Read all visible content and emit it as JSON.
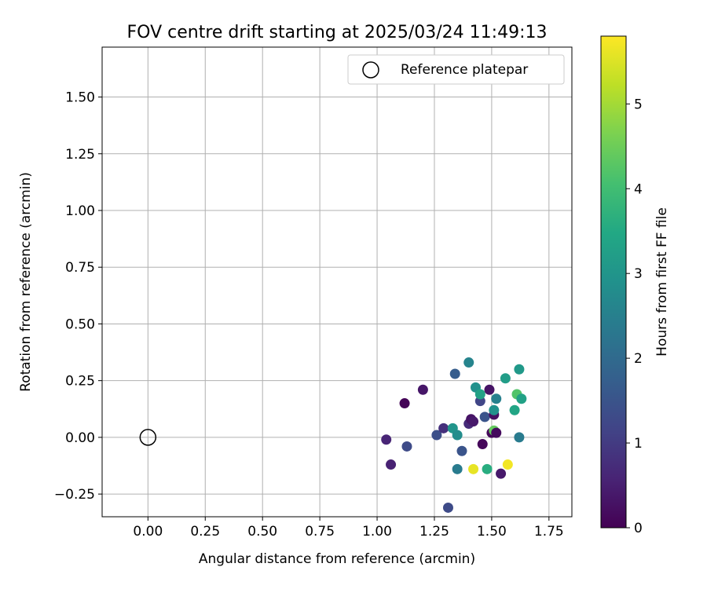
{
  "chart_data": {
    "type": "scatter",
    "title": "FOV centre drift starting at 2025/03/24 11:49:13",
    "xlabel": "Angular distance from reference (arcmin)",
    "ylabel": "Rotation from reference (arcmin)",
    "xlim": [
      -0.2,
      1.85
    ],
    "ylim": [
      -0.35,
      1.72
    ],
    "xticks": [
      0.0,
      0.25,
      0.5,
      0.75,
      1.0,
      1.25,
      1.5,
      1.75
    ],
    "xtick_labels": [
      "0.00",
      "0.25",
      "0.50",
      "0.75",
      "1.00",
      "1.25",
      "1.50",
      "1.75"
    ],
    "yticks": [
      -0.25,
      0.0,
      0.25,
      0.5,
      0.75,
      1.0,
      1.25,
      1.5
    ],
    "ytick_labels": [
      "−0.25",
      "0.00",
      "0.25",
      "0.50",
      "0.75",
      "1.00",
      "1.25",
      "1.50"
    ],
    "grid": true,
    "legend": {
      "placement": "top-right",
      "entries": [
        "Reference platepar"
      ]
    },
    "reference_point": {
      "x": 0.0,
      "y": 0.0,
      "label": "Reference platepar"
    },
    "colorbar": {
      "label": "Hours from first FF file",
      "colormap": "viridis",
      "min": 0,
      "max": 5.8,
      "ticks": [
        0,
        1,
        2,
        3,
        4,
        5
      ],
      "tick_labels": [
        "0",
        "1",
        "2",
        "3",
        "4",
        "5"
      ]
    },
    "points": [
      {
        "x": 1.12,
        "y": 0.15,
        "c": 0.05
      },
      {
        "x": 1.2,
        "y": 0.21,
        "c": 0.35
      },
      {
        "x": 1.04,
        "y": -0.01,
        "c": 0.6
      },
      {
        "x": 1.06,
        "y": -0.12,
        "c": 0.55
      },
      {
        "x": 1.13,
        "y": -0.04,
        "c": 1.3
      },
      {
        "x": 1.26,
        "y": 0.01,
        "c": 1.4
      },
      {
        "x": 1.29,
        "y": 0.04,
        "c": 0.8
      },
      {
        "x": 1.31,
        "y": -0.31,
        "c": 1.3
      },
      {
        "x": 1.33,
        "y": 0.04,
        "c": 3.0
      },
      {
        "x": 1.34,
        "y": 0.28,
        "c": 1.7
      },
      {
        "x": 1.35,
        "y": 0.01,
        "c": 2.8
      },
      {
        "x": 1.35,
        "y": -0.14,
        "c": 2.4
      },
      {
        "x": 1.37,
        "y": -0.06,
        "c": 1.5
      },
      {
        "x": 1.4,
        "y": 0.33,
        "c": 2.6
      },
      {
        "x": 1.4,
        "y": 0.06,
        "c": 0.7
      },
      {
        "x": 1.41,
        "y": 0.08,
        "c": 0.3
      },
      {
        "x": 1.42,
        "y": 0.07,
        "c": 0.4
      },
      {
        "x": 1.42,
        "y": -0.14,
        "c": 5.6
      },
      {
        "x": 1.43,
        "y": 0.22,
        "c": 2.9
      },
      {
        "x": 1.45,
        "y": 0.16,
        "c": 1.2
      },
      {
        "x": 1.45,
        "y": 0.19,
        "c": 3.3
      },
      {
        "x": 1.46,
        "y": -0.03,
        "c": 0.1
      },
      {
        "x": 1.47,
        "y": 0.09,
        "c": 1.5
      },
      {
        "x": 1.48,
        "y": -0.14,
        "c": 3.6
      },
      {
        "x": 1.49,
        "y": 0.21,
        "c": 0.3
      },
      {
        "x": 1.5,
        "y": 0.02,
        "c": 0.1
      },
      {
        "x": 1.51,
        "y": 0.03,
        "c": 4.4
      },
      {
        "x": 1.51,
        "y": 0.1,
        "c": 0.25
      },
      {
        "x": 1.51,
        "y": 0.12,
        "c": 2.9
      },
      {
        "x": 1.52,
        "y": 0.17,
        "c": 2.5
      },
      {
        "x": 1.52,
        "y": 0.02,
        "c": 0.15
      },
      {
        "x": 1.54,
        "y": -0.16,
        "c": 0.4
      },
      {
        "x": 1.56,
        "y": 0.26,
        "c": 3.2
      },
      {
        "x": 1.57,
        "y": -0.12,
        "c": 5.7
      },
      {
        "x": 1.6,
        "y": 0.12,
        "c": 3.4
      },
      {
        "x": 1.61,
        "y": 0.19,
        "c": 4.2
      },
      {
        "x": 1.62,
        "y": 0.3,
        "c": 3.1
      },
      {
        "x": 1.62,
        "y": 0.0,
        "c": 2.4
      },
      {
        "x": 1.63,
        "y": 0.17,
        "c": 3.3
      }
    ]
  }
}
